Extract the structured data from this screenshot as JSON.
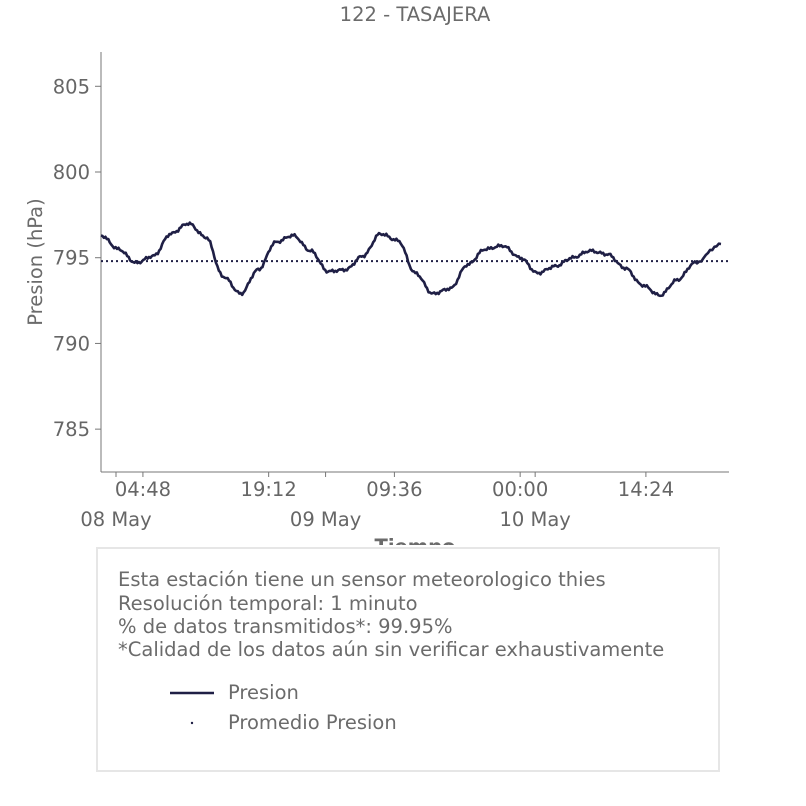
{
  "chart_data": {
    "type": "line",
    "title": "122 - TASAJERA",
    "xlabel": "Tiempo",
    "ylabel": "Presion (hPa)",
    "ylim": [
      782.5,
      807.0
    ],
    "yticks": [
      785,
      790,
      795,
      800,
      805
    ],
    "x_start": "2024-05-08 00:00",
    "x_end": "2024-05-10 23:55",
    "xticks_minor": [
      "04:48",
      "19:12",
      "09:36",
      "00:00",
      "14:24"
    ],
    "xticks_major": [
      "08 May",
      "09 May",
      "10 May"
    ],
    "grid": false,
    "colors": {
      "line": "#1f1f45",
      "mean": "#1f1f45",
      "axis": "#777777",
      "text": "#666666"
    },
    "series": [
      {
        "name": "Presion",
        "style": "solid",
        "x": [
          "2024-05-08 00:00",
          "2024-05-08 02:00",
          "2024-05-08 04:00",
          "2024-05-08 06:00",
          "2024-05-08 08:00",
          "2024-05-08 10:00",
          "2024-05-08 12:00",
          "2024-05-08 14:00",
          "2024-05-08 16:00",
          "2024-05-08 18:00",
          "2024-05-08 20:00",
          "2024-05-08 22:00",
          "2024-05-09 00:00",
          "2024-05-09 02:00",
          "2024-05-09 04:00",
          "2024-05-09 06:00",
          "2024-05-09 08:00",
          "2024-05-09 10:00",
          "2024-05-09 12:00",
          "2024-05-09 14:00",
          "2024-05-09 16:00",
          "2024-05-09 18:00",
          "2024-05-09 20:00",
          "2024-05-09 22:00",
          "2024-05-10 00:00",
          "2024-05-10 02:00",
          "2024-05-10 04:00",
          "2024-05-10 06:00",
          "2024-05-10 08:00",
          "2024-05-10 10:00",
          "2024-05-10 12:00",
          "2024-05-10 14:00",
          "2024-05-10 16:00",
          "2024-05-10 18:00",
          "2024-05-10 20:00",
          "2024-05-10 23:00"
        ],
        "values": [
          796.3,
          795.5,
          794.7,
          795.1,
          796.4,
          797.0,
          796.2,
          793.9,
          792.9,
          794.3,
          795.9,
          796.3,
          795.4,
          794.2,
          794.3,
          795.1,
          796.4,
          796.0,
          794.1,
          792.9,
          793.2,
          794.6,
          795.5,
          795.7,
          795.0,
          794.1,
          794.5,
          795.0,
          795.4,
          795.2,
          794.4,
          793.4,
          792.8,
          793.7,
          794.7,
          795.8
        ]
      },
      {
        "name": "Promedio Presion",
        "style": "dotted",
        "x": [
          "2024-05-08 00:00",
          "2024-05-10 23:55"
        ],
        "values": [
          794.8,
          794.8
        ]
      }
    ],
    "legend_position": "bottom"
  },
  "notes": [
    "Esta estación tiene un sensor meteorologico thies",
    "Resolución temporal: 1 minuto",
    "% de datos transmitidos*: 99.95%",
    "*Calidad de los datos aún sin verificar exhaustivamente"
  ]
}
